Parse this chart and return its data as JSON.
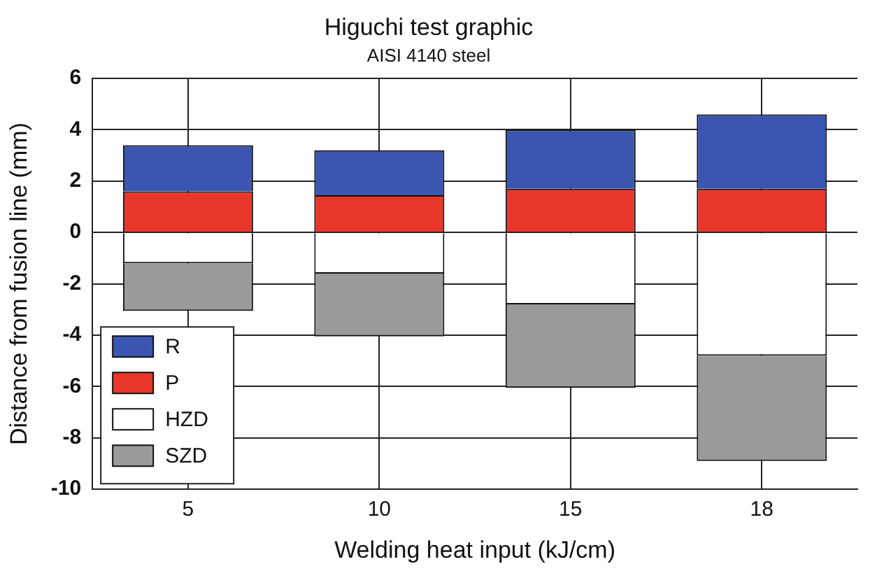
{
  "chart_data": {
    "type": "bar",
    "title": "Higuchi test graphic",
    "subtitle": "AISI 4140 steel",
    "xlabel": "Welding heat input (kJ/cm)",
    "ylabel": "Distance from fusion line (mm)",
    "categories": [
      "5",
      "10",
      "15",
      "18"
    ],
    "stacked": true,
    "series": [
      {
        "name": "P",
        "color": "#e8372a",
        "values": [
          1.6,
          1.45,
          1.7,
          1.7
        ]
      },
      {
        "name": "R",
        "color": "#3a56b0",
        "values": [
          1.8,
          1.75,
          2.3,
          2.9
        ]
      },
      {
        "name": "HZD",
        "color": "#ffffff",
        "values": [
          -1.2,
          -1.6,
          -2.8,
          -4.8
        ]
      },
      {
        "name": "SZD",
        "color": "#9a9a9a",
        "values": [
          -1.85,
          -2.45,
          -3.25,
          -4.1
        ]
      }
    ],
    "ylim": [
      -10,
      6
    ],
    "yticks": [
      -10,
      -8,
      -6,
      -4,
      -2,
      0,
      2,
      4,
      6
    ],
    "grid": true,
    "legend": "bottom left"
  }
}
